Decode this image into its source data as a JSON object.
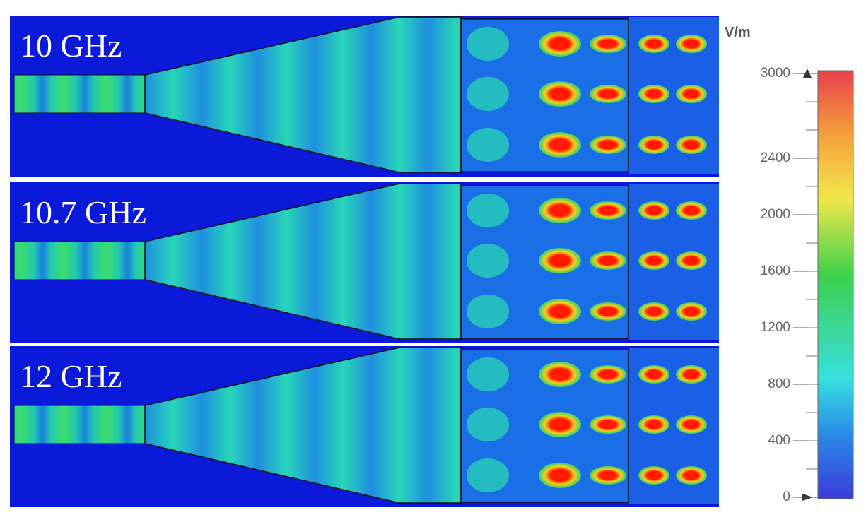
{
  "panels": [
    {
      "label": "10 GHz"
    },
    {
      "label": "10.7 GHz"
    },
    {
      "label": "12 GHz"
    }
  ],
  "colorbar": {
    "unit": "V/m",
    "ticks": [
      0,
      400,
      800,
      1200,
      1600,
      2000,
      2400,
      3000
    ],
    "range": [
      0,
      3000
    ]
  }
}
